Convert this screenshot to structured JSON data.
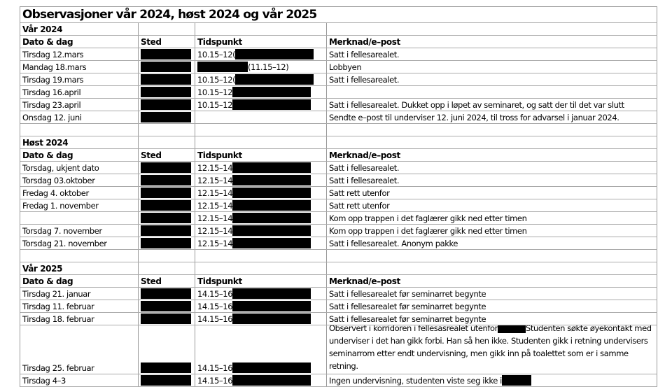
{
  "title": "Observasjoner vår 2024, høst 2024 og vår 2025",
  "headers": {
    "date": "Dato & dag",
    "place": "Sted",
    "time": "Tidspunkt",
    "note": "Merknad/e–post"
  },
  "sections": [
    {
      "name": "Vår 2024",
      "rows": [
        {
          "date": "Tirsdag 12.mars",
          "sted_redacted": true,
          "time": "10.15–12(",
          "time_redacted": "after",
          "note": "Satt i fellesarealet."
        },
        {
          "date": "Mandag 18.mars",
          "sted_redacted": true,
          "time": "(11.15–12)",
          "time_redacted": "before",
          "note": "Lobbyen"
        },
        {
          "date": "Tirsdag 19.mars",
          "sted_redacted": true,
          "time": "10.15–12(",
          "time_redacted": "after",
          "note": "Satt i fellesarealet."
        },
        {
          "date": "Tirsdag 16.april",
          "sted_redacted": true,
          "time": "10.15–12",
          "time_redacted": "after",
          "note": ""
        },
        {
          "date": "Tirsdag 23.april",
          "sted_redacted": true,
          "time": "10.15–12",
          "time_redacted": "after",
          "note": "Satt i fellesarealet.  Dukket opp i løpet av seminaret, og satt der til det var slutt"
        },
        {
          "date": "Onsdag 12. juni",
          "sted_redacted": true,
          "time": "",
          "time_redacted": "none",
          "note": "Sendte e–post til  underviser 12. juni 2024, til tross for advarsel i januar 2024."
        }
      ]
    },
    {
      "name": "Høst 2024",
      "rows": [
        {
          "date": "Torsdag, ukjent dato",
          "sted_redacted": true,
          "time": "12.15–14",
          "time_redacted": "after",
          "note": "Satt i fellesarealet."
        },
        {
          "date": "Torsdag 03.oktober",
          "sted_redacted": true,
          "time": "12.15–14",
          "time_redacted": "after",
          "note": "Satt i fellesarealet."
        },
        {
          "date": "Fredag 4. oktober",
          "sted_redacted": true,
          "time": "12.15–14",
          "time_redacted": "after",
          "note": "Satt rett utenfor"
        },
        {
          "date": "Fredag 1. november",
          "sted_redacted": true,
          "time": "12.15–14",
          "time_redacted": "after",
          "note": "Satt rett utenfor"
        },
        {
          "date": "",
          "sted_redacted": true,
          "time": "12.15–14",
          "time_redacted": "after",
          "note": "Kom opp trappen i det faglærer gikk ned etter timen"
        },
        {
          "date": "Torsdag 7. november",
          "sted_redacted": true,
          "time": "12.15–14",
          "time_redacted": "after",
          "note": "Kom opp trappen i det faglærer gikk ned etter timen"
        },
        {
          "date": "Torsdag 21. november",
          "sted_redacted": true,
          "time": "12.15–14",
          "time_redacted": "after",
          "note": "Satt i fellesarealet.  Anonym pakke"
        }
      ]
    },
    {
      "name": "Vår 2025",
      "rows": [
        {
          "date": "Tirsdag 21. januar",
          "sted_redacted": true,
          "time": "14.15–16",
          "time_redacted": "after",
          "note": "Satt i fellesarealet før seminarret begynte"
        },
        {
          "date": "Tirsdag 11. februar",
          "sted_redacted": true,
          "time": "14.15–16",
          "time_redacted": "after",
          "note": "Satt i fellesarealet før seminarret begynte"
        },
        {
          "date": "Tirsdag 18. februar",
          "sted_redacted": true,
          "time": "14.15–16",
          "time_redacted": "after",
          "note": "Satt i fellesarealet før seminarret begynte"
        },
        {
          "date": "Tirsdag 25. februar",
          "sted_redacted": true,
          "time": "14.15–16",
          "time_redacted": "after",
          "tall": true,
          "note_before": "Observert i korridoren i fellesasrealet utenfor",
          "note": "Studenten søkte øyekontakt med underviser i det han gikk forbi. Han så hen ikke. Studenten gikk i retning undervisers seminarrom etter  endt undervisning, men gikk inn på toalettet  som er i samme retning."
        },
        {
          "date": "Tirsdag  4–3",
          "sted_redacted": true,
          "time": "14.15–16",
          "time_redacted": "after",
          "note": "Ingen undervisning, studenten viste seg ikke i",
          "note_redacted_after": true
        }
      ]
    }
  ]
}
